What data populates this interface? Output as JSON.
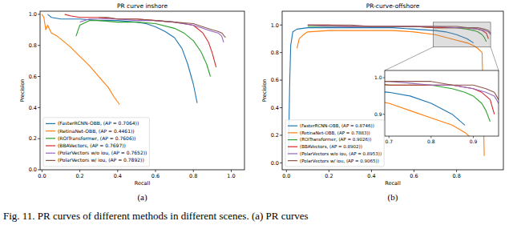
{
  "caption": "Fig. 11.  PR curves of different methods in different scenes. (a) PR curves",
  "chart_data": [
    {
      "type": "line",
      "title": "PR curve inshore",
      "subcaption": "(a)",
      "x_label": "Recall",
      "y_label": "Precision",
      "xlim": [
        -0.01,
        1.07
      ],
      "ylim": [
        0,
        1.02
      ],
      "xticks": [
        {
          "value": 0,
          "label": "0.0"
        },
        0.2,
        0.4,
        0.6,
        0.8,
        {
          "value": 1,
          "label": "1.0"
        }
      ],
      "yticks": [
        {
          "value": 0,
          "label": "0.0"
        },
        0.2,
        0.4,
        0.6,
        0.8,
        {
          "value": 1,
          "label": "1.0"
        }
      ],
      "grid": false,
      "legend": "lower left",
      "series": [
        {
          "name": "(FasterRCNN-OBB, (AP = 0.7064))",
          "color": "#1f77b4",
          "x": [
            0.03,
            0.05,
            0.1,
            0.2,
            0.3,
            0.4,
            0.5,
            0.55,
            0.6,
            0.65,
            0.7,
            0.74,
            0.77,
            0.8,
            0.82
          ],
          "values": [
            1.0,
            0.98,
            0.97,
            0.97,
            0.96,
            0.96,
            0.95,
            0.94,
            0.92,
            0.89,
            0.85,
            0.78,
            0.68,
            0.55,
            0.43
          ]
        },
        {
          "name": "(RetinaNet-OBB, (AP = 0.4461))",
          "color": "#ff7f0e",
          "x": [
            0.0,
            0.01,
            0.02,
            0.03,
            0.05,
            0.08,
            0.1,
            0.15,
            0.2,
            0.25,
            0.3,
            0.35,
            0.38,
            0.41
          ],
          "values": [
            1.0,
            0.98,
            0.9,
            0.93,
            0.88,
            0.86,
            0.84,
            0.79,
            0.73,
            0.67,
            0.6,
            0.53,
            0.47,
            0.42
          ]
        },
        {
          "name": "(ROITransformer, (AP = 0.7606))",
          "color": "#2ca02c",
          "x": [
            0.18,
            0.2,
            0.25,
            0.3,
            0.4,
            0.5,
            0.6,
            0.7,
            0.75,
            0.8,
            0.84,
            0.87,
            0.89
          ],
          "values": [
            0.86,
            0.93,
            0.96,
            0.96,
            0.95,
            0.95,
            0.94,
            0.91,
            0.88,
            0.83,
            0.76,
            0.68,
            0.6
          ]
        },
        {
          "name": "(BBAVectors, (AP = 0.7697))",
          "color": "#d62728",
          "x": [
            0.12,
            0.15,
            0.2,
            0.3,
            0.4,
            0.5,
            0.6,
            0.7,
            0.8,
            0.85,
            0.88,
            0.9,
            0.92
          ],
          "values": [
            1.0,
            0.99,
            0.98,
            0.98,
            0.97,
            0.97,
            0.96,
            0.95,
            0.93,
            0.88,
            0.82,
            0.75,
            0.66
          ]
        },
        {
          "name": "(PolarVectors w/o iou, (AP = 0.7652))",
          "color": "#9467bd",
          "x": [
            0.2,
            0.25,
            0.3,
            0.4,
            0.5,
            0.6,
            0.7,
            0.8,
            0.85,
            0.9,
            0.93,
            0.95,
            0.96
          ],
          "values": [
            0.95,
            0.97,
            0.97,
            0.97,
            0.96,
            0.96,
            0.95,
            0.93,
            0.91,
            0.89,
            0.88,
            0.86,
            0.82
          ]
        },
        {
          "name": "(PolarVectors w/ iou, (AP = 0.7892))",
          "color": "#8c564b",
          "x": [
            0.3,
            0.35,
            0.4,
            0.5,
            0.6,
            0.7,
            0.8,
            0.85,
            0.9,
            0.93,
            0.95,
            0.97
          ],
          "values": [
            0.98,
            0.98,
            0.97,
            0.97,
            0.96,
            0.95,
            0.94,
            0.92,
            0.9,
            0.89,
            0.88,
            0.85
          ]
        }
      ]
    },
    {
      "type": "line",
      "title": "PR-curve-offshore",
      "subcaption": "(b)",
      "x_label": "Recall",
      "y_label": "Precision",
      "xlim": [
        -0.02,
        1.02
      ],
      "ylim": [
        -0.05,
        1.1
      ],
      "xticks": [
        {
          "value": 0,
          "label": "0.0"
        },
        0.2,
        0.4,
        0.6,
        0.8
      ],
      "yticks": [
        {
          "value": 0,
          "label": "0.0"
        },
        0.2,
        0.4,
        0.6,
        0.8,
        {
          "value": 1,
          "label": "1.0"
        }
      ],
      "grid": false,
      "legend": "lower left",
      "inset": {
        "xlim": [
          0.69,
          0.96
        ],
        "ylim": [
          0.84,
          1.02
        ],
        "xticks": [
          0.7,
          0.8,
          0.9
        ],
        "yticks": [
          0.9,
          {
            "value": 1,
            "label": "1.0"
          }
        ]
      },
      "series": [
        {
          "name": "(FasterRCNN-OBB, (AP = 0.8746))",
          "color": "#1f77b4",
          "x": [
            0.01,
            0.015,
            0.02,
            0.03,
            0.05,
            0.1,
            0.2,
            0.3,
            0.4,
            0.5,
            0.6,
            0.7,
            0.75,
            0.8,
            0.85,
            0.88
          ],
          "values": [
            0.05,
            0.55,
            0.85,
            0.95,
            0.97,
            0.98,
            0.98,
            0.98,
            0.98,
            0.98,
            0.97,
            0.96,
            0.95,
            0.93,
            0.9,
            0.87
          ]
        },
        {
          "name": "(RetinaNet-OBB, (AP = 0.7883))",
          "color": "#ff7f0e",
          "x": [
            0.05,
            0.06,
            0.08,
            0.1,
            0.2,
            0.3,
            0.4,
            0.5,
            0.6,
            0.7,
            0.75,
            0.8,
            0.85,
            0.88,
            0.9,
            0.92,
            0.93
          ],
          "values": [
            0.83,
            0.9,
            0.93,
            0.95,
            0.96,
            0.96,
            0.96,
            0.96,
            0.95,
            0.93,
            0.91,
            0.89,
            0.87,
            0.85,
            0.83,
            0.8,
            0.05
          ]
        },
        {
          "name": "(ROITransformer, (AP = 0.9026))",
          "color": "#2ca02c",
          "x": [
            0.1,
            0.2,
            0.3,
            0.4,
            0.5,
            0.6,
            0.7,
            0.8,
            0.85,
            0.88,
            0.9,
            0.92,
            0.93,
            0.94
          ],
          "values": [
            0.99,
            0.99,
            0.99,
            0.99,
            0.99,
            0.99,
            0.98,
            0.98,
            0.97,
            0.96,
            0.95,
            0.93,
            0.91,
            0.88
          ]
        },
        {
          "name": "(BBAVectors, (AP = 0.8902))",
          "color": "#d62728",
          "x": [
            0.1,
            0.2,
            0.3,
            0.4,
            0.5,
            0.6,
            0.7,
            0.8,
            0.85,
            0.9,
            0.92,
            0.94,
            0.95
          ],
          "values": [
            1.0,
            1.0,
            0.99,
            0.99,
            0.99,
            0.99,
            0.98,
            0.98,
            0.98,
            0.97,
            0.96,
            0.94,
            0.9
          ]
        },
        {
          "name": "(PolarVectors w/o iou, (AP = 0.8953))",
          "color": "#9467bd",
          "x": [
            0.1,
            0.2,
            0.3,
            0.4,
            0.5,
            0.6,
            0.7,
            0.8,
            0.85,
            0.9,
            0.93,
            0.95,
            0.96
          ],
          "values": [
            1.0,
            0.99,
            0.99,
            0.99,
            0.99,
            0.99,
            0.99,
            0.98,
            0.98,
            0.97,
            0.96,
            0.95,
            0.93
          ]
        },
        {
          "name": "(PolarVectors w/ iou, (AP = 0.9065))",
          "color": "#8c564b",
          "x": [
            0.1,
            0.2,
            0.3,
            0.4,
            0.5,
            0.6,
            0.7,
            0.8,
            0.85,
            0.9,
            0.93,
            0.95,
            0.96
          ],
          "values": [
            1.0,
            1.0,
            1.0,
            0.99,
            0.99,
            0.99,
            0.99,
            0.99,
            0.98,
            0.98,
            0.97,
            0.96,
            0.94
          ]
        }
      ]
    }
  ]
}
